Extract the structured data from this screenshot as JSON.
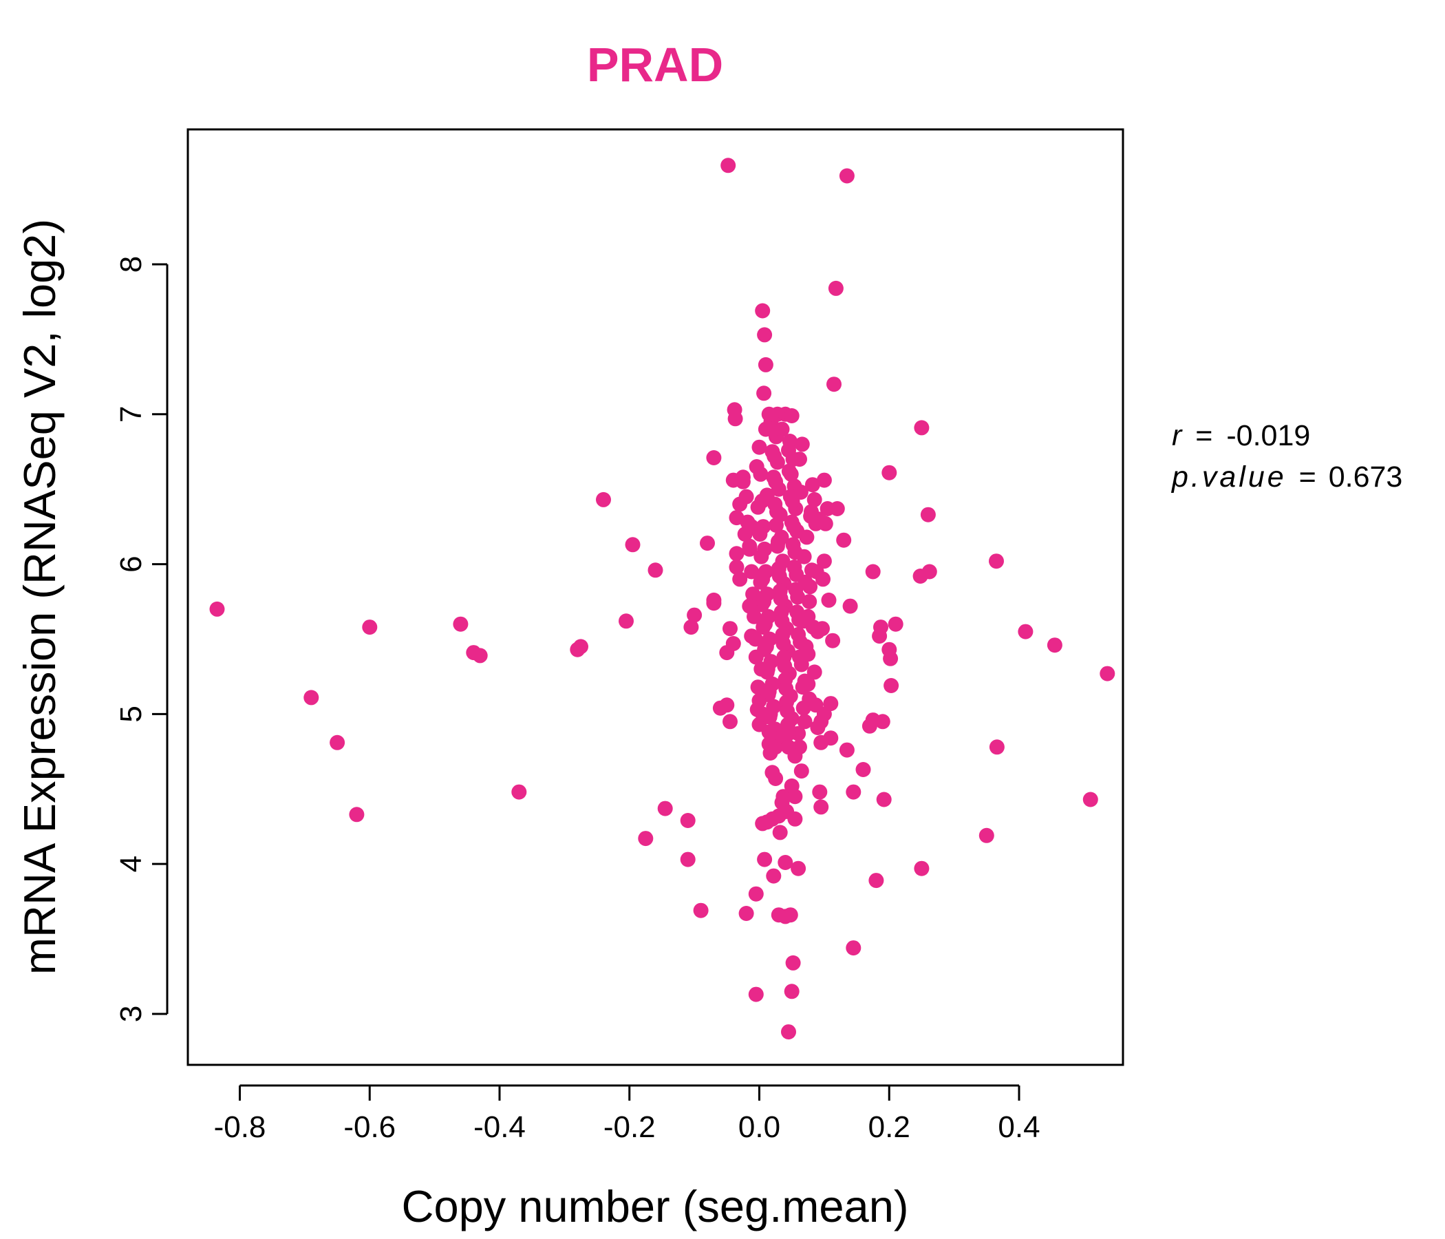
{
  "chart_data": {
    "type": "scatter",
    "title": "PRAD",
    "xlabel": "Copy number (seg.mean)",
    "ylabel": "mRNA Expression (RNASeq V2, log2)",
    "xlim": [
      -0.88,
      0.56
    ],
    "ylim": [
      2.66,
      8.9
    ],
    "x_ticks": [
      "-0.8",
      "-0.6",
      "-0.4",
      "-0.2",
      "0.0",
      "0.2",
      "0.4"
    ],
    "y_ticks": [
      "3",
      "4",
      "5",
      "6",
      "7",
      "8"
    ],
    "color": "#e8288a",
    "stats": {
      "r_label": "r",
      "r_value": "-0.019",
      "p_label": "p.value",
      "p_value": "0.673",
      "eq": "="
    },
    "points": [
      [
        -0.835,
        5.7
      ],
      [
        -0.69,
        5.11
      ],
      [
        -0.65,
        4.81
      ],
      [
        -0.62,
        4.33
      ],
      [
        -0.6,
        5.58
      ],
      [
        -0.46,
        5.6
      ],
      [
        -0.44,
        5.41
      ],
      [
        -0.43,
        5.39
      ],
      [
        -0.37,
        4.48
      ],
      [
        -0.28,
        5.43
      ],
      [
        -0.275,
        5.45
      ],
      [
        -0.24,
        6.43
      ],
      [
        -0.205,
        5.62
      ],
      [
        -0.195,
        6.13
      ],
      [
        -0.175,
        4.17
      ],
      [
        -0.16,
        5.96
      ],
      [
        -0.145,
        4.37
      ],
      [
        -0.11,
        4.29
      ],
      [
        -0.11,
        4.03
      ],
      [
        -0.105,
        5.58
      ],
      [
        -0.1,
        5.66
      ],
      [
        -0.09,
        3.69
      ],
      [
        -0.08,
        6.14
      ],
      [
        -0.07,
        5.76
      ],
      [
        -0.07,
        5.74
      ],
      [
        -0.07,
        6.71
      ],
      [
        -0.06,
        5.04
      ],
      [
        -0.05,
        5.41
      ],
      [
        -0.05,
        5.06
      ],
      [
        -0.045,
        4.95
      ],
      [
        -0.045,
        5.57
      ],
      [
        -0.04,
        5.47
      ],
      [
        -0.04,
        6.56
      ],
      [
        -0.038,
        7.03
      ],
      [
        -0.037,
        6.97
      ],
      [
        -0.035,
        6.07
      ],
      [
        -0.035,
        5.98
      ],
      [
        -0.035,
        6.31
      ],
      [
        -0.03,
        5.9
      ],
      [
        -0.025,
        6.55
      ],
      [
        -0.02,
        3.67
      ],
      [
        -0.015,
        6.1
      ],
      [
        -0.012,
        6.25
      ],
      [
        -0.01,
        5.74
      ],
      [
        -0.005,
        3.8
      ],
      [
        -0.005,
        3.13
      ],
      [
        -0.003,
        5.03
      ],
      [
        0.0,
        5.09
      ],
      [
        0.0,
        4.93
      ],
      [
        0.003,
        5.3
      ],
      [
        0.005,
        4.27
      ],
      [
        0.005,
        7.69
      ],
      [
        0.007,
        7.14
      ],
      [
        0.008,
        4.03
      ],
      [
        0.008,
        7.53
      ],
      [
        0.01,
        7.33
      ],
      [
        0.01,
        6.9
      ],
      [
        0.012,
        6.46
      ],
      [
        0.015,
        4.8
      ],
      [
        0.017,
        4.74
      ],
      [
        0.02,
        4.61
      ],
      [
        0.022,
        3.92
      ],
      [
        0.025,
        4.57
      ],
      [
        0.03,
        3.66
      ],
      [
        0.032,
        4.21
      ],
      [
        0.035,
        4.41
      ],
      [
        0.037,
        4.45
      ],
      [
        0.04,
        3.65
      ],
      [
        0.04,
        4.01
      ],
      [
        0.045,
        2.88
      ],
      [
        0.048,
        3.66
      ],
      [
        0.05,
        3.15
      ],
      [
        0.052,
        3.34
      ],
      [
        0.055,
        4.3
      ],
      [
        0.055,
        4.45
      ],
      [
        0.06,
        3.97
      ],
      [
        0.06,
        4.87
      ],
      [
        0.062,
        4.78
      ],
      [
        0.065,
        4.62
      ],
      [
        0.068,
        5.04
      ],
      [
        0.07,
        5.22
      ],
      [
        0.072,
        5.45
      ],
      [
        0.075,
        5.65
      ],
      [
        0.077,
        5.75
      ],
      [
        0.08,
        6.35
      ],
      [
        0.082,
        6.53
      ],
      [
        0.085,
        6.43
      ],
      [
        0.087,
        6.27
      ],
      [
        0.09,
        4.91
      ],
      [
        0.093,
        4.48
      ],
      [
        0.095,
        4.38
      ],
      [
        0.095,
        4.81
      ],
      [
        0.097,
        5.57
      ],
      [
        0.1,
        6.56
      ],
      [
        0.1,
        6.02
      ],
      [
        0.102,
        6.27
      ],
      [
        0.105,
        6.37
      ],
      [
        0.107,
        5.76
      ],
      [
        0.11,
        5.07
      ],
      [
        0.11,
        4.84
      ],
      [
        0.113,
        5.49
      ],
      [
        0.115,
        7.2
      ],
      [
        0.118,
        7.84
      ],
      [
        0.12,
        6.37
      ],
      [
        0.135,
        8.59
      ],
      [
        0.13,
        6.16
      ],
      [
        0.135,
        4.76
      ],
      [
        0.14,
        5.72
      ],
      [
        0.145,
        4.48
      ],
      [
        0.145,
        3.44
      ],
      [
        0.16,
        4.63
      ],
      [
        0.17,
        4.92
      ],
      [
        0.175,
        4.96
      ],
      [
        0.175,
        5.95
      ],
      [
        0.18,
        3.89
      ],
      [
        0.185,
        5.52
      ],
      [
        0.187,
        5.58
      ],
      [
        0.19,
        4.95
      ],
      [
        0.192,
        4.43
      ],
      [
        0.2,
        5.43
      ],
      [
        0.2,
        6.61
      ],
      [
        0.202,
        5.37
      ],
      [
        0.203,
        5.19
      ],
      [
        0.21,
        5.6
      ],
      [
        0.248,
        5.92
      ],
      [
        0.25,
        6.91
      ],
      [
        0.25,
        3.97
      ],
      [
        0.26,
        6.33
      ],
      [
        0.262,
        5.95
      ],
      [
        0.35,
        4.19
      ],
      [
        0.365,
        6.02
      ],
      [
        0.366,
        4.78
      ],
      [
        0.41,
        5.55
      ],
      [
        0.455,
        5.46
      ],
      [
        0.51,
        4.43
      ],
      [
        0.536,
        5.27
      ],
      [
        -0.048,
        8.66
      ],
      [
        0.0,
        6.78
      ],
      [
        0.002,
        6.6
      ],
      [
        0.004,
        6.42
      ],
      [
        0.006,
        6.25
      ],
      [
        0.008,
        6.1
      ],
      [
        0.01,
        5.95
      ],
      [
        0.012,
        5.8
      ],
      [
        0.014,
        5.65
      ],
      [
        0.016,
        5.5
      ],
      [
        0.018,
        5.35
      ],
      [
        0.02,
        5.2
      ],
      [
        0.022,
        5.05
      ],
      [
        0.024,
        4.9
      ],
      [
        0.026,
        6.85
      ],
      [
        0.028,
        6.68
      ],
      [
        0.03,
        6.5
      ],
      [
        0.032,
        6.33
      ],
      [
        0.034,
        6.18
      ],
      [
        0.036,
        6.02
      ],
      [
        0.038,
        5.87
      ],
      [
        0.04,
        5.72
      ],
      [
        0.042,
        5.57
      ],
      [
        0.044,
        5.42
      ],
      [
        0.046,
        5.27
      ],
      [
        0.048,
        5.12
      ],
      [
        0.05,
        4.97
      ],
      [
        0.052,
        6.7
      ],
      [
        0.054,
        6.52
      ],
      [
        0.056,
        6.37
      ],
      [
        0.058,
        6.22
      ],
      [
        0.002,
        5.88
      ],
      [
        0.004,
        5.73
      ],
      [
        0.006,
        5.58
      ],
      [
        0.008,
        5.43
      ],
      [
        0.012,
        5.28
      ],
      [
        0.014,
        5.13
      ],
      [
        0.016,
        4.98
      ],
      [
        0.018,
        6.95
      ],
      [
        0.02,
        6.75
      ],
      [
        0.022,
        6.58
      ],
      [
        0.024,
        6.4
      ],
      [
        0.026,
        6.26
      ],
      [
        0.028,
        6.12
      ],
      [
        0.03,
        5.97
      ],
      [
        0.032,
        5.82
      ],
      [
        0.034,
        5.68
      ],
      [
        0.036,
        5.53
      ],
      [
        0.038,
        5.38
      ],
      [
        0.04,
        5.23
      ],
      [
        0.042,
        5.08
      ],
      [
        0.044,
        4.93
      ],
      [
        0.046,
        6.62
      ],
      [
        0.048,
        6.45
      ],
      [
        0.05,
        6.28
      ],
      [
        0.052,
        6.13
      ],
      [
        0.054,
        5.98
      ],
      [
        0.056,
        5.83
      ],
      [
        0.058,
        5.68
      ],
      [
        0.06,
        5.53
      ],
      [
        0.062,
        5.38
      ],
      [
        -0.02,
        6.45
      ],
      [
        -0.018,
        6.28
      ],
      [
        -0.015,
        6.12
      ],
      [
        -0.012,
        5.95
      ],
      [
        -0.01,
        5.8
      ],
      [
        -0.008,
        5.65
      ],
      [
        -0.006,
        5.5
      ],
      [
        -0.004,
        6.65
      ],
      [
        -0.002,
        6.38
      ],
      [
        0.001,
        6.2
      ],
      [
        0.003,
        6.05
      ],
      [
        0.005,
        5.9
      ],
      [
        0.007,
        5.75
      ],
      [
        0.009,
        5.6
      ],
      [
        0.011,
        5.45
      ],
      [
        0.013,
        5.3
      ],
      [
        0.015,
        5.15
      ],
      [
        0.017,
        5.0
      ],
      [
        0.019,
        4.85
      ],
      [
        0.021,
        6.9
      ],
      [
        0.023,
        6.72
      ],
      [
        0.025,
        6.55
      ],
      [
        0.027,
        6.35
      ],
      [
        0.029,
        6.15
      ],
      [
        0.031,
        5.92
      ],
      [
        0.033,
        5.77
      ],
      [
        0.035,
        5.62
      ],
      [
        0.037,
        5.47
      ],
      [
        0.039,
        5.32
      ],
      [
        0.041,
        5.17
      ],
      [
        0.043,
        5.02
      ],
      [
        0.045,
        4.87
      ],
      [
        0.047,
        6.82
      ],
      [
        0.049,
        6.6
      ],
      [
        0.051,
        6.42
      ],
      [
        0.053,
        6.25
      ],
      [
        0.055,
        6.08
      ],
      [
        0.057,
        5.93
      ],
      [
        0.059,
        5.78
      ],
      [
        0.061,
        5.63
      ],
      [
        0.063,
        5.48
      ],
      [
        0.065,
        5.33
      ],
      [
        0.067,
        5.18
      ],
      [
        0.069,
        6.05
      ],
      [
        0.071,
        5.88
      ],
      [
        0.073,
        6.18
      ],
      [
        0.075,
        5.4
      ],
      [
        0.077,
        5.1
      ],
      [
        0.079,
        6.32
      ],
      [
        0.081,
        5.96
      ],
      [
        0.083,
        5.58
      ],
      [
        0.085,
        5.28
      ],
      [
        0.087,
        5.06
      ],
      [
        0.066,
        6.8
      ],
      [
        0.064,
        6.48
      ],
      [
        0.028,
        7.0
      ],
      [
        0.04,
        7.0
      ],
      [
        0.05,
        6.99
      ],
      [
        0.015,
        7.0
      ],
      [
        0.035,
        6.9
      ],
      [
        0.045,
        6.76
      ],
      [
        0.062,
        6.7
      ],
      [
        -0.025,
        6.58
      ],
      [
        -0.03,
        6.4
      ],
      [
        -0.022,
        6.2
      ],
      [
        -0.015,
        5.72
      ],
      [
        -0.012,
        5.52
      ],
      [
        -0.005,
        5.38
      ],
      [
        -0.002,
        5.18
      ],
      [
        0.005,
        5.0
      ],
      [
        0.015,
        4.88
      ],
      [
        0.025,
        4.78
      ],
      [
        0.035,
        4.85
      ],
      [
        0.045,
        4.78
      ],
      [
        0.055,
        4.72
      ],
      [
        0.05,
        4.52
      ],
      [
        0.042,
        4.35
      ],
      [
        0.03,
        4.32
      ],
      [
        0.02,
        4.3
      ],
      [
        0.012,
        4.28
      ],
      [
        0.07,
        4.95
      ],
      [
        0.075,
        5.2
      ],
      [
        0.068,
        5.62
      ],
      [
        0.078,
        5.85
      ],
      [
        0.088,
        5.95
      ],
      [
        0.092,
        6.3
      ],
      [
        0.098,
        5.9
      ],
      [
        0.09,
        5.55
      ],
      [
        0.1,
        5.0
      ],
      [
        0.095,
        4.95
      ]
    ]
  }
}
